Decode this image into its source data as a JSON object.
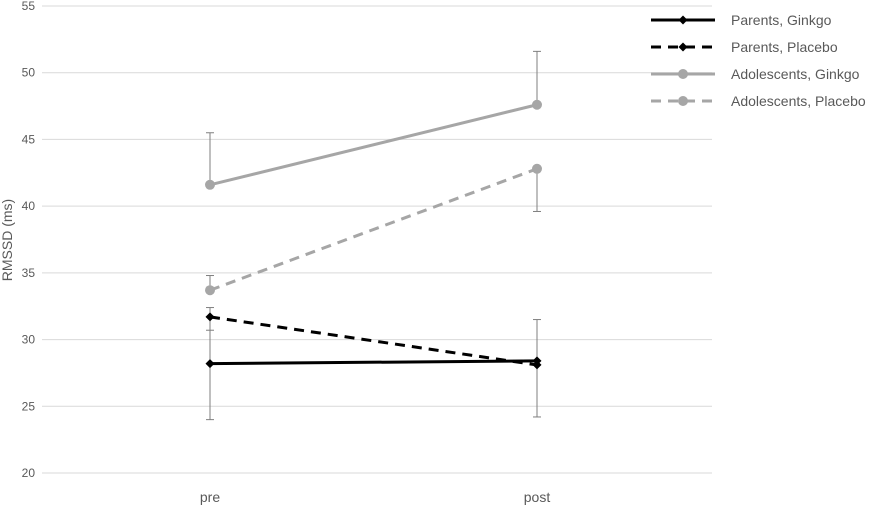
{
  "chart_data": {
    "type": "line",
    "title": "",
    "xlabel": "",
    "ylabel": "RMSSD (ms)",
    "ylim": [
      20,
      55
    ],
    "yticks": [
      20,
      25,
      30,
      35,
      40,
      45,
      50,
      55
    ],
    "categories": [
      "pre",
      "post"
    ],
    "grid": true,
    "legend_position": "right",
    "series": [
      {
        "name": "Parents, Ginkgo",
        "values": [
          28.2,
          28.4
        ],
        "error_low": [
          24.0,
          24.2
        ],
        "error_high": [
          32.4,
          31.5
        ],
        "color": "#000000",
        "dash": "solid",
        "marker": "diamond"
      },
      {
        "name": "Parents, Placebo",
        "values": [
          31.7,
          28.1
        ],
        "error_low": [
          30.7,
          28.1
        ],
        "error_high": [
          31.7,
          28.1
        ],
        "color": "#000000",
        "dash": "dashed",
        "marker": "diamond"
      },
      {
        "name": "Adolescents, Ginkgo",
        "values": [
          41.6,
          47.6
        ],
        "error_low": [
          41.6,
          47.6
        ],
        "error_high": [
          45.5,
          51.6
        ],
        "color": "#a6a6a6",
        "dash": "solid",
        "marker": "circle"
      },
      {
        "name": "Adolescents, Placebo",
        "values": [
          33.7,
          42.8
        ],
        "error_low": [
          33.7,
          39.6
        ],
        "error_high": [
          34.8,
          42.8
        ],
        "color": "#a6a6a6",
        "dash": "dashed",
        "marker": "circle"
      }
    ]
  }
}
